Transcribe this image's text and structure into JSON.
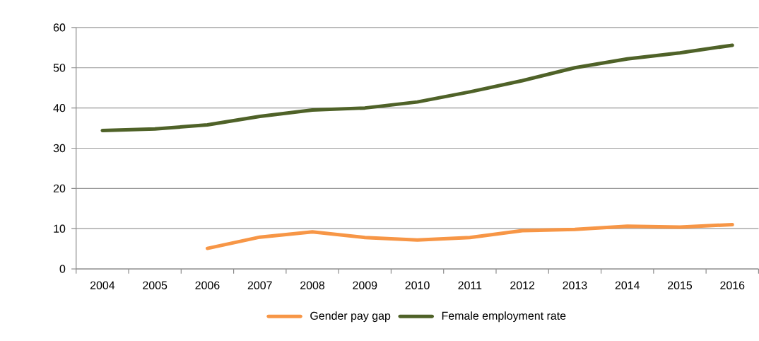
{
  "chart_data": {
    "type": "line",
    "categories": [
      "2004",
      "2005",
      "2006",
      "2007",
      "2008",
      "2009",
      "2010",
      "2011",
      "2012",
      "2013",
      "2014",
      "2015",
      "2016"
    ],
    "series": [
      {
        "name": "Gender pay gap",
        "color": "#f79646",
        "values": [
          null,
          null,
          5.1,
          7.9,
          9.2,
          7.8,
          7.2,
          7.8,
          9.5,
          9.8,
          10.6,
          10.4,
          11.0
        ]
      },
      {
        "name": "Female employment rate",
        "color": "#4f6228",
        "values": [
          34.4,
          34.8,
          35.8,
          37.9,
          39.5,
          40.0,
          41.5,
          44.0,
          46.8,
          50.0,
          52.2,
          53.7,
          55.6
        ]
      }
    ],
    "ylim": [
      0,
      60
    ],
    "yticks": [
      0,
      10,
      20,
      30,
      40,
      50,
      60
    ],
    "grid": "y",
    "legend": "bottom",
    "marker": "none",
    "line_style": "solid"
  }
}
